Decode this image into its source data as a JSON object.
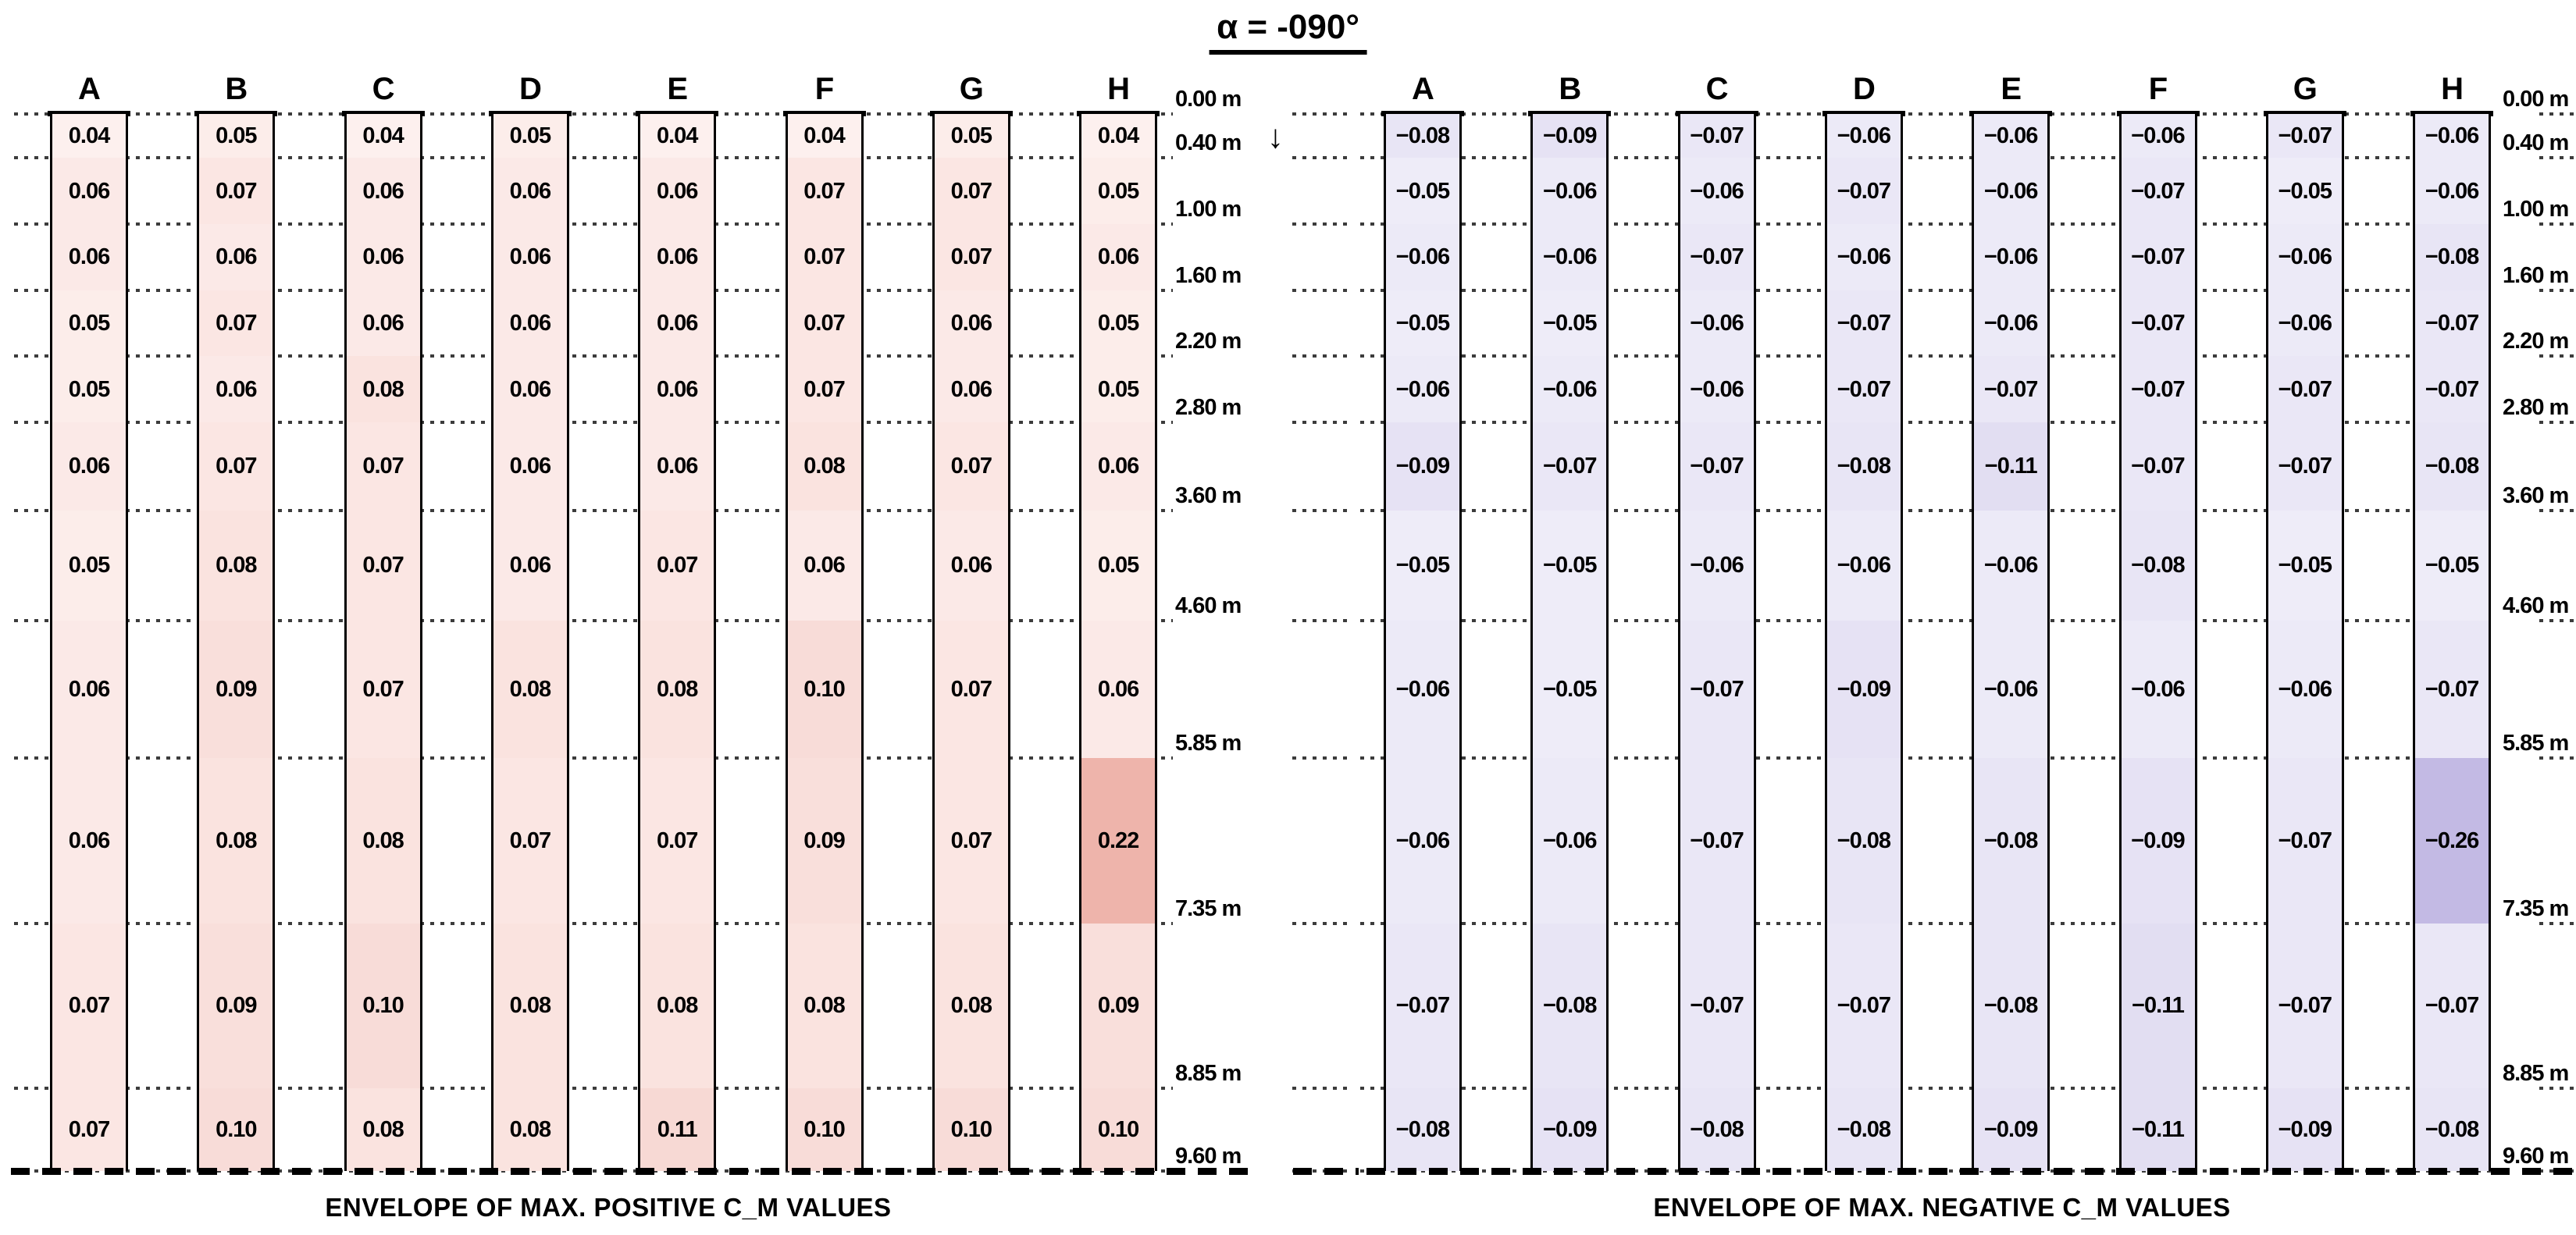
{
  "title": "α = -090°",
  "depth_labels": [
    "0.00 m",
    "0.40 m",
    "1.00 m",
    "1.60 m",
    "2.20 m",
    "2.80 m",
    "3.60 m",
    "4.60 m",
    "5.85 m",
    "7.35 m",
    "8.85 m",
    "9.60 m"
  ],
  "arrow_label_index": 1,
  "icons": {
    "down_arrow": "↓"
  },
  "chart_data": [
    {
      "type": "heatmap",
      "title": "ENVELOPE OF MAX. POSITIVE C_M VALUES",
      "columns": [
        "A",
        "B",
        "C",
        "D",
        "E",
        "F",
        "G",
        "H"
      ],
      "depth_boundaries_m": [
        0.0,
        0.4,
        1.0,
        1.6,
        2.2,
        2.8,
        3.6,
        4.6,
        5.85,
        7.35,
        8.85,
        9.6
      ],
      "rows": [
        [
          0.04,
          0.05,
          0.04,
          0.05,
          0.04,
          0.04,
          0.05,
          0.04
        ],
        [
          0.06,
          0.07,
          0.06,
          0.06,
          0.06,
          0.07,
          0.07,
          0.05
        ],
        [
          0.06,
          0.06,
          0.06,
          0.06,
          0.06,
          0.07,
          0.07,
          0.06
        ],
        [
          0.05,
          0.07,
          0.06,
          0.06,
          0.06,
          0.07,
          0.06,
          0.05
        ],
        [
          0.05,
          0.06,
          0.08,
          0.06,
          0.06,
          0.07,
          0.06,
          0.05
        ],
        [
          0.06,
          0.07,
          0.07,
          0.06,
          0.06,
          0.08,
          0.07,
          0.06
        ],
        [
          0.05,
          0.08,
          0.07,
          0.06,
          0.07,
          0.06,
          0.06,
          0.05
        ],
        [
          0.06,
          0.09,
          0.07,
          0.08,
          0.08,
          0.1,
          0.07,
          0.06
        ],
        [
          0.06,
          0.08,
          0.08,
          0.07,
          0.07,
          0.09,
          0.07,
          0.22
        ],
        [
          0.07,
          0.09,
          0.1,
          0.08,
          0.08,
          0.08,
          0.08,
          0.09
        ],
        [
          0.07,
          0.1,
          0.08,
          0.08,
          0.11,
          0.1,
          0.1,
          0.1
        ]
      ],
      "abs_value_range": [
        0.04,
        0.22
      ],
      "cell_color_light": "#fdf0ee",
      "cell_color_strong": "#eeb4ab"
    },
    {
      "type": "heatmap",
      "title": "ENVELOPE OF MAX. NEGATIVE C_M VALUES",
      "columns": [
        "A",
        "B",
        "C",
        "D",
        "E",
        "F",
        "G",
        "H"
      ],
      "depth_boundaries_m": [
        0.0,
        0.4,
        1.0,
        1.6,
        2.2,
        2.8,
        3.6,
        4.6,
        5.85,
        7.35,
        8.85,
        9.6
      ],
      "rows": [
        [
          -0.08,
          -0.09,
          -0.07,
          -0.06,
          -0.06,
          -0.06,
          -0.07,
          -0.06
        ],
        [
          -0.05,
          -0.06,
          -0.06,
          -0.07,
          -0.06,
          -0.07,
          -0.05,
          -0.06
        ],
        [
          -0.06,
          -0.06,
          -0.07,
          -0.06,
          -0.06,
          -0.07,
          -0.06,
          -0.08
        ],
        [
          -0.05,
          -0.05,
          -0.06,
          -0.07,
          -0.06,
          -0.07,
          -0.06,
          -0.07
        ],
        [
          -0.06,
          -0.06,
          -0.06,
          -0.07,
          -0.07,
          -0.07,
          -0.07,
          -0.07
        ],
        [
          -0.09,
          -0.07,
          -0.07,
          -0.08,
          -0.11,
          -0.07,
          -0.07,
          -0.08
        ],
        [
          -0.05,
          -0.05,
          -0.06,
          -0.06,
          -0.06,
          -0.08,
          -0.05,
          -0.05
        ],
        [
          -0.06,
          -0.05,
          -0.07,
          -0.09,
          -0.06,
          -0.06,
          -0.06,
          -0.07
        ],
        [
          -0.06,
          -0.06,
          -0.07,
          -0.08,
          -0.08,
          -0.09,
          -0.07,
          -0.26
        ],
        [
          -0.07,
          -0.08,
          -0.07,
          -0.07,
          -0.08,
          -0.11,
          -0.07,
          -0.07
        ],
        [
          -0.08,
          -0.09,
          -0.08,
          -0.08,
          -0.09,
          -0.11,
          -0.09,
          -0.08
        ]
      ],
      "abs_value_range": [
        0.05,
        0.26
      ],
      "cell_color_light": "#eeecf8",
      "cell_color_strong": "#c3bae4"
    }
  ]
}
